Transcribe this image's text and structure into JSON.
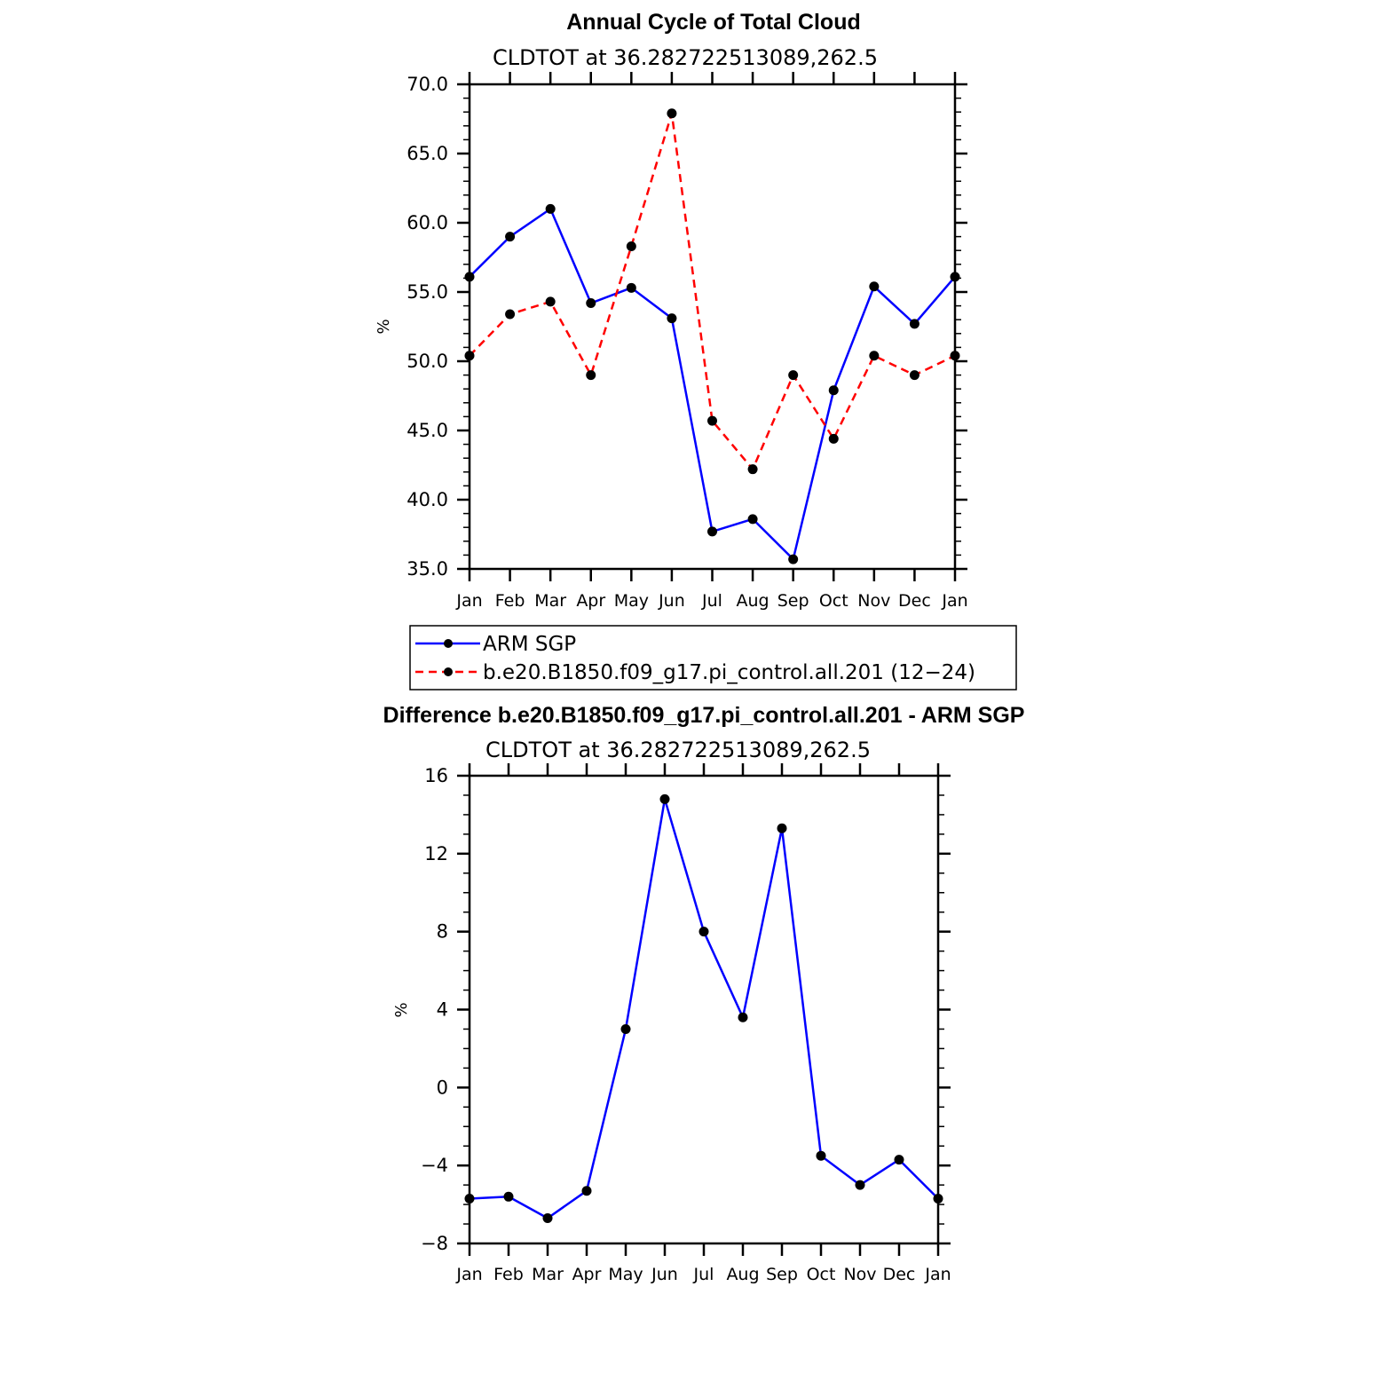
{
  "chart_data": [
    {
      "type": "line",
      "title": "Annual Cycle of Total Cloud",
      "subtitle": "CLDTOT at 36.282722513089,262.5",
      "ylabel": "%",
      "xlabel": "",
      "ylim": [
        35,
        70
      ],
      "yticks": [
        "35.0",
        "40.0",
        "45.0",
        "50.0",
        "55.0",
        "60.0",
        "65.0",
        "70.0"
      ],
      "categories": [
        "Jan",
        "Feb",
        "Mar",
        "Apr",
        "May",
        "Jun",
        "Jul",
        "Aug",
        "Sep",
        "Oct",
        "Nov",
        "Dec",
        "Jan"
      ],
      "series": [
        {
          "name": "ARM SGP",
          "color": "#0000ff",
          "dash": "solid",
          "values": [
            56.1,
            59.0,
            61.0,
            54.2,
            55.3,
            53.1,
            37.7,
            38.6,
            35.7,
            47.9,
            55.4,
            52.7,
            56.1
          ]
        },
        {
          "name": "b.e20.B1850.f09_g17.pi_control.all.201 (12−24)",
          "color": "#ff0000",
          "dash": "dashed",
          "values": [
            50.4,
            53.4,
            54.3,
            49.0,
            58.3,
            67.9,
            45.7,
            42.2,
            49.0,
            44.4,
            50.4,
            49.0,
            50.4
          ]
        }
      ],
      "legend": "below"
    },
    {
      "type": "line",
      "title": "Difference b.e20.B1850.f09_g17.pi_control.all.201 - ARM SGP",
      "subtitle": "CLDTOT at 36.282722513089,262.5",
      "ylabel": "%",
      "xlabel": "",
      "ylim": [
        -8,
        16
      ],
      "yticks": [
        "−8",
        "−4",
        "0",
        "4",
        "8",
        "12",
        "16"
      ],
      "categories": [
        "Jan",
        "Feb",
        "Mar",
        "Apr",
        "May",
        "Jun",
        "Jul",
        "Aug",
        "Sep",
        "Oct",
        "Nov",
        "Dec",
        "Jan"
      ],
      "series": [
        {
          "name": "Difference",
          "color": "#0000ff",
          "dash": "solid",
          "values": [
            -5.7,
            -5.6,
            -6.7,
            -5.3,
            3.0,
            14.8,
            8.0,
            3.6,
            13.3,
            -3.5,
            -5.0,
            -3.7,
            -5.7
          ]
        }
      ]
    }
  ]
}
